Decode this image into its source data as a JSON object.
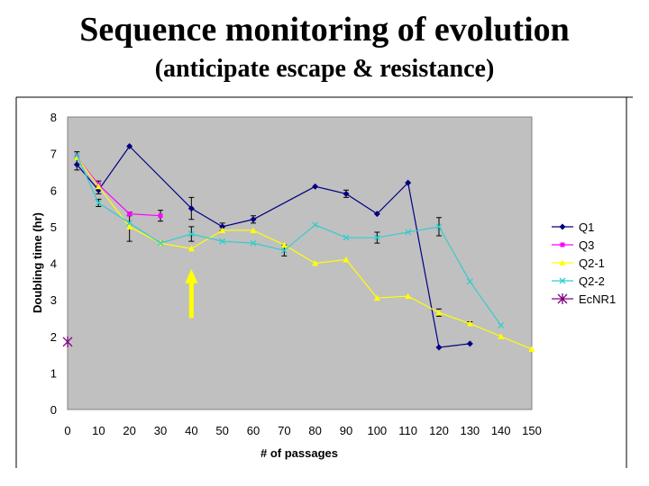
{
  "title": "Sequence monitoring of evolution",
  "subtitle": "(anticipate escape & resistance)",
  "chart_data": {
    "type": "line",
    "xlabel": "# of passages",
    "ylabel": "Doubling time (hr)",
    "xlim": [
      0,
      150
    ],
    "ylim": [
      0,
      8
    ],
    "x_ticks": [
      0,
      10,
      20,
      30,
      40,
      50,
      60,
      70,
      80,
      90,
      100,
      110,
      120,
      130,
      140,
      150
    ],
    "y_ticks": [
      0,
      1,
      2,
      3,
      4,
      5,
      6,
      7,
      8
    ],
    "grid": false,
    "legend_position": "right",
    "plot_background": "#c0c0c0",
    "series": [
      {
        "name": "Q1",
        "color": "#000080",
        "marker": "diamond",
        "points": [
          [
            3,
            6.7
          ],
          [
            10,
            6.0
          ],
          [
            20,
            7.2
          ],
          [
            40,
            5.5
          ],
          [
            50,
            5.0
          ],
          [
            60,
            5.2
          ],
          [
            80,
            6.1
          ],
          [
            90,
            5.9
          ],
          [
            100,
            5.35
          ],
          [
            110,
            6.2
          ],
          [
            120,
            1.7
          ],
          [
            130,
            1.8
          ]
        ],
        "errors": [
          0.15,
          0.1,
          0,
          0.3,
          0.1,
          0.1,
          0,
          0.1,
          0,
          0,
          0,
          0
        ]
      },
      {
        "name": "Q3",
        "color": "#ff00ff",
        "marker": "square",
        "points": [
          [
            3,
            6.9
          ],
          [
            10,
            6.15
          ],
          [
            20,
            5.35
          ],
          [
            30,
            5.3
          ]
        ],
        "errors": [
          0,
          0.1,
          0.05,
          0.15
        ]
      },
      {
        "name": "Q2-1",
        "color": "#ffff00",
        "marker": "triangle",
        "points": [
          [
            3,
            6.9
          ],
          [
            10,
            6.1
          ],
          [
            20,
            5.0
          ],
          [
            30,
            4.55
          ],
          [
            40,
            4.4
          ],
          [
            50,
            4.9
          ],
          [
            60,
            4.9
          ],
          [
            70,
            4.5
          ],
          [
            80,
            4.0
          ],
          [
            90,
            4.1
          ],
          [
            100,
            3.05
          ],
          [
            110,
            3.1
          ],
          [
            120,
            2.65
          ],
          [
            130,
            2.35
          ],
          [
            140,
            2.0
          ],
          [
            150,
            1.65
          ]
        ],
        "errors": [
          0,
          0,
          0.4,
          0,
          0,
          0,
          0,
          0,
          0,
          0,
          0,
          0,
          0.1,
          0.05,
          0,
          0
        ]
      },
      {
        "name": "Q2-2",
        "color": "#33cccc",
        "marker": "x",
        "points": [
          [
            3,
            6.95
          ],
          [
            10,
            5.65
          ],
          [
            20,
            5.1
          ],
          [
            30,
            4.55
          ],
          [
            40,
            4.8
          ],
          [
            50,
            4.6
          ],
          [
            60,
            4.55
          ],
          [
            70,
            4.35
          ],
          [
            80,
            5.05
          ],
          [
            90,
            4.7
          ],
          [
            100,
            4.7
          ],
          [
            110,
            4.85
          ],
          [
            120,
            5.0
          ],
          [
            130,
            3.5
          ],
          [
            140,
            2.3
          ]
        ],
        "errors": [
          0.1,
          0.1,
          0,
          0,
          0.2,
          0,
          0,
          0.15,
          0,
          0,
          0.15,
          0,
          0.25,
          0,
          0
        ]
      },
      {
        "name": "EcNR1",
        "color": "#800080",
        "marker": "asterisk",
        "points": [
          [
            0,
            1.85
          ]
        ],
        "errors": [
          0
        ]
      }
    ]
  },
  "annotation": {
    "name": "upward-arrow",
    "color": "#ffff00",
    "x": 40,
    "y_from": 2.5,
    "y_to": 3.7
  }
}
